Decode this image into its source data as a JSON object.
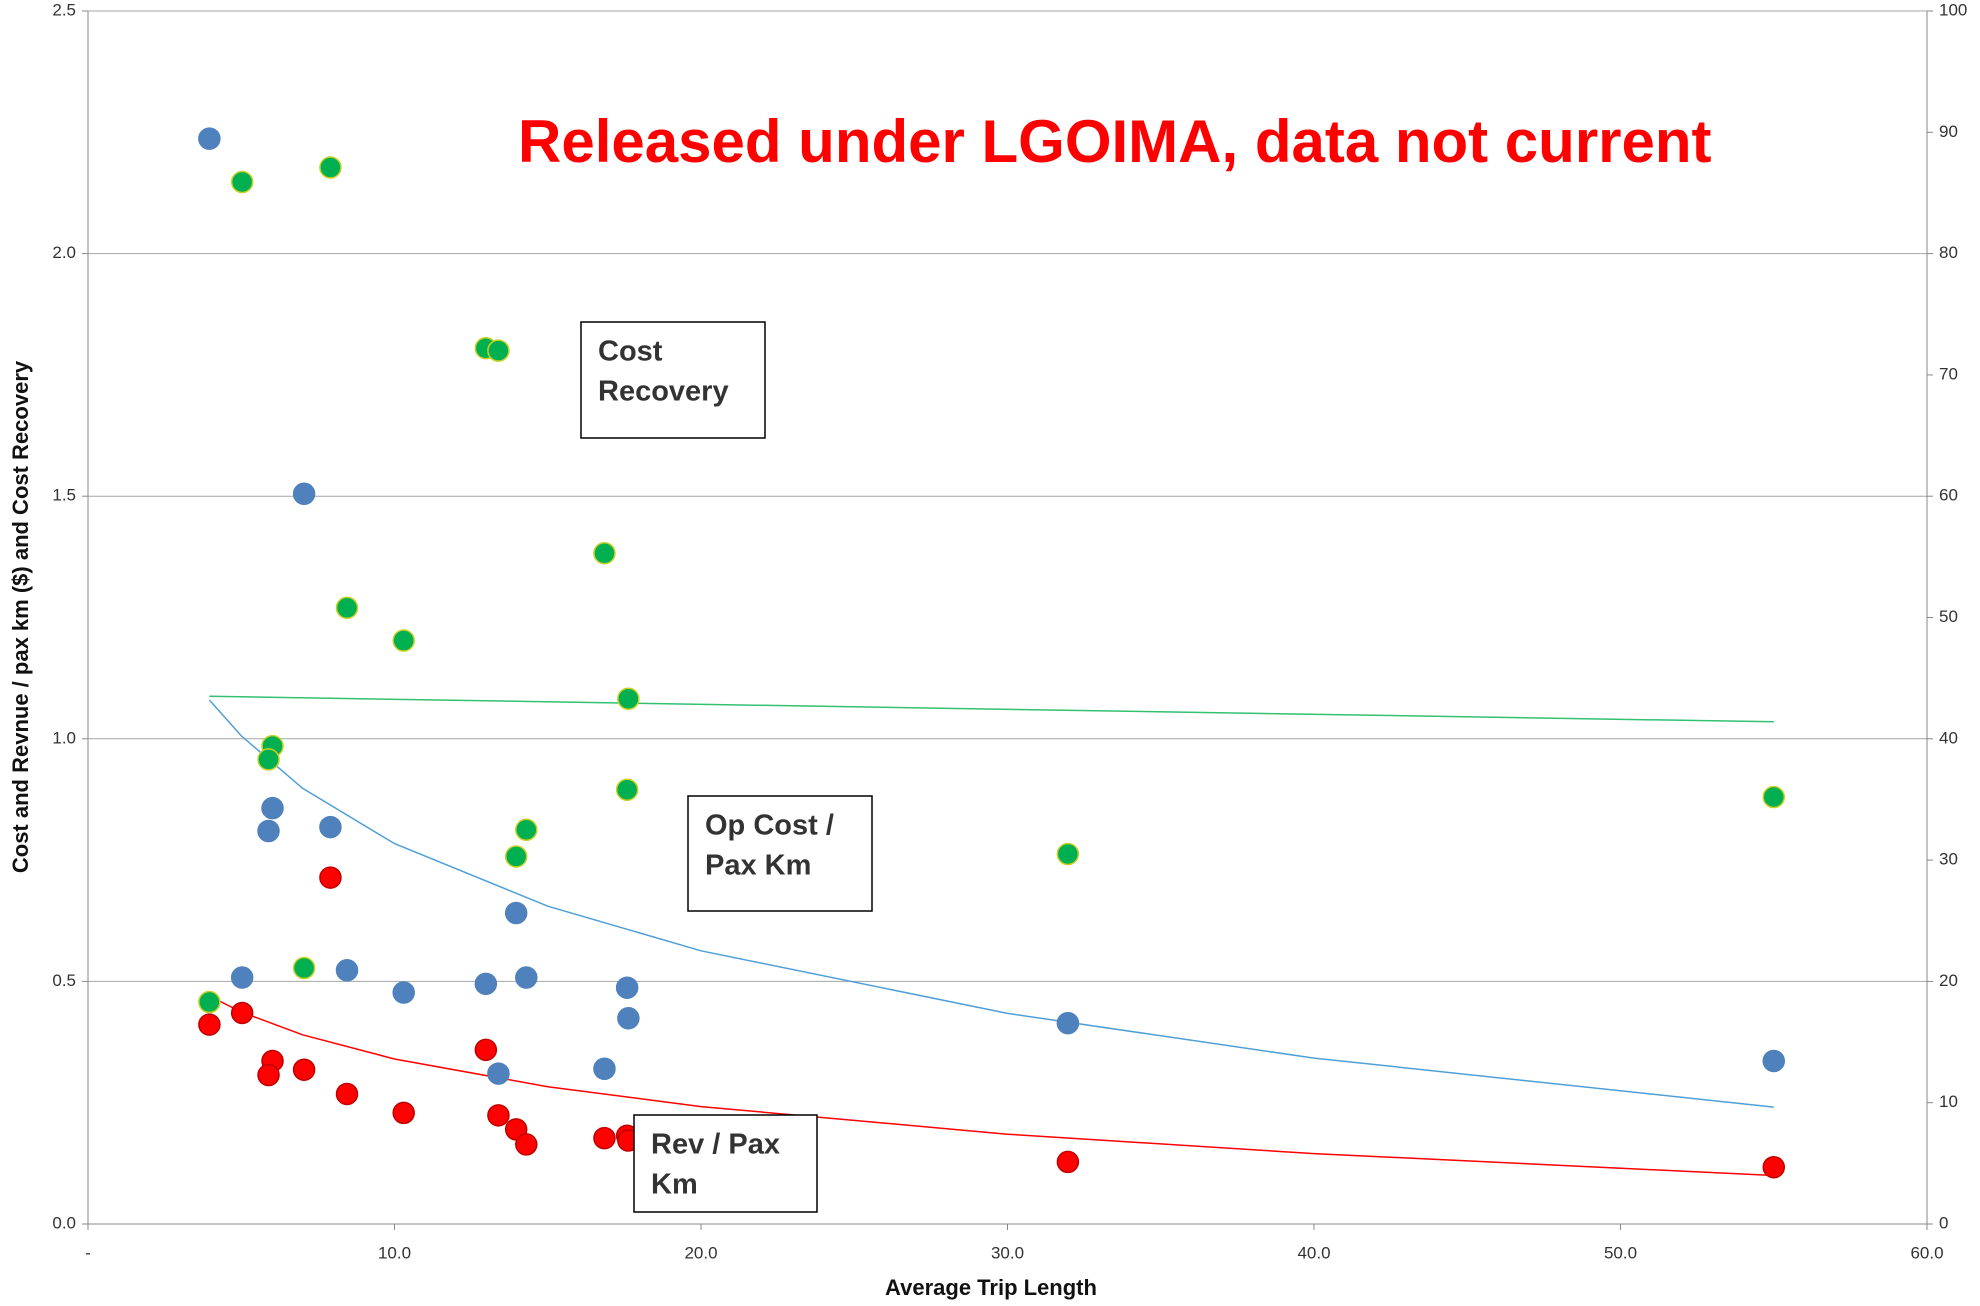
{
  "chart_data": {
    "type": "scatter",
    "watermark": "Released under LGOIMA, data not current",
    "xlabel": "Average Trip Length",
    "ylabel": "Cost and Revnue / pax km ($) and Cost Recovery",
    "xlim": [
      0,
      60
    ],
    "xticks": [
      {
        "value": 0,
        "label": "-"
      },
      {
        "value": 10,
        "label": "10.0"
      },
      {
        "value": 20,
        "label": "20.0"
      },
      {
        "value": 30,
        "label": "30.0"
      },
      {
        "value": 40,
        "label": "40.0"
      },
      {
        "value": 50,
        "label": "50.0"
      },
      {
        "value": 60,
        "label": "60.0"
      }
    ],
    "ylim": [
      0,
      2.5
    ],
    "yticks": [
      {
        "value": 0,
        "label": "0.0"
      },
      0.5,
      {
        "value": 1,
        "label": "1.0"
      },
      1.5,
      {
        "value": 2,
        "label": "2.0"
      },
      2.5
    ],
    "y2lim": [
      0,
      100
    ],
    "y2ticks": [
      0,
      10,
      20,
      30,
      40,
      50,
      60,
      70,
      80,
      90,
      100
    ],
    "grid": true,
    "series": [
      {
        "name": "Op Cost / Pax Km",
        "color": "#4f81bd",
        "edge": "#4f81bd",
        "x": [
          3.96,
          5.03,
          7.05,
          5.89,
          6.02,
          7.91,
          8.45,
          10.3,
          12.98,
          13.39,
          13.97,
          14.3,
          16.85,
          17.59,
          17.63,
          31.97,
          55.0
        ],
        "values": [
          2.237,
          0.508,
          1.505,
          0.81,
          0.857,
          0.818,
          0.523,
          0.477,
          0.495,
          0.31,
          0.641,
          0.508,
          0.32,
          0.487,
          0.424,
          0.414,
          0.336
        ]
      },
      {
        "name": "Rev / Pax Km",
        "color": "#ff0000",
        "edge": "#c00000",
        "x": [
          3.96,
          5.03,
          6.02,
          5.89,
          7.05,
          7.91,
          8.45,
          10.3,
          12.98,
          13.39,
          13.97,
          14.3,
          16.85,
          17.59,
          17.63,
          31.97,
          55.0
        ],
        "values": [
          0.411,
          0.435,
          0.336,
          0.307,
          0.318,
          0.714,
          0.268,
          0.229,
          0.359,
          0.224,
          0.195,
          0.164,
          0.177,
          0.182,
          0.172,
          0.128,
          0.117
        ]
      },
      {
        "name": "Cost Recovery",
        "color": "#00b050",
        "edge": "#c8d020",
        "axis": "y2",
        "x": [
          3.96,
          5.03,
          7.91,
          6.02,
          5.89,
          7.05,
          8.45,
          10.3,
          12.98,
          13.39,
          13.97,
          14.3,
          16.85,
          17.63,
          17.59,
          31.97,
          55.0
        ],
        "values": [
          18.3,
          85.9,
          87.1,
          39.4,
          38.3,
          21.1,
          50.8,
          48.1,
          72.2,
          72.0,
          30.3,
          32.5,
          55.3,
          43.3,
          35.8,
          30.5,
          35.2
        ]
      }
    ],
    "trendlines": [
      {
        "color": "#4f9fd8",
        "x": [
          3.96,
          5,
          7,
          10,
          15,
          20,
          30,
          40,
          55
        ],
        "values": [
          1.08,
          1.006,
          0.898,
          0.784,
          0.655,
          0.563,
          0.434,
          0.342,
          0.241
        ]
      },
      {
        "color": "#ff0000",
        "x": [
          3.96,
          5,
          7,
          10,
          15,
          20,
          30,
          40,
          55
        ],
        "values": [
          0.47,
          0.437,
          0.39,
          0.34,
          0.283,
          0.242,
          0.185,
          0.145,
          0.1
        ]
      },
      {
        "color": "#33c070",
        "axis": "y2",
        "x": [
          3.96,
          55
        ],
        "values": [
          43.5,
          41.4
        ]
      }
    ],
    "labels": [
      {
        "lines": [
          "Cost",
          "Recovery"
        ],
        "color": "#00b050"
      },
      {
        "lines": [
          "Op Cost /",
          "Pax Km"
        ],
        "color": "#0070c0"
      },
      {
        "lines": [
          "Rev / Pax",
          "Km"
        ],
        "color": "#ff0000"
      }
    ]
  }
}
